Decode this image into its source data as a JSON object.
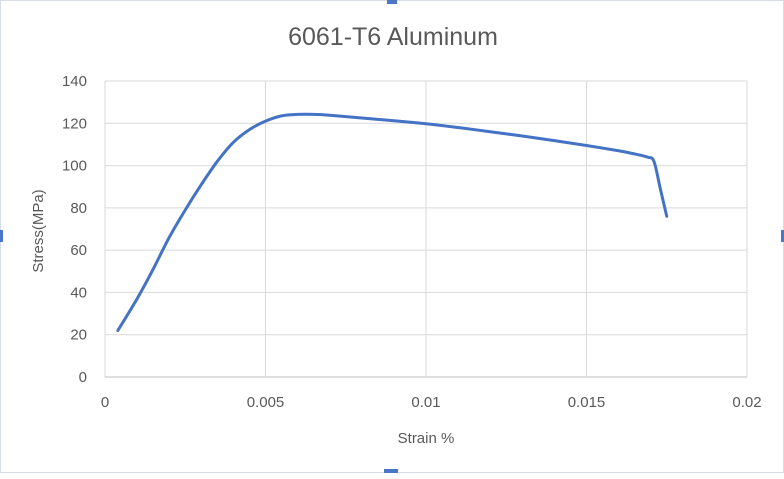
{
  "chart_data": {
    "type": "line",
    "title": "6061-T6 Aluminum",
    "xlabel": "Strain %",
    "ylabel": "Stress(MPa)",
    "xlim": [
      0,
      0.02
    ],
    "ylim": [
      0,
      140
    ],
    "x_ticks": [
      0,
      0.005,
      0.01,
      0.015,
      0.02
    ],
    "x_tick_labels": [
      "0",
      "0.005",
      "0.01",
      "0.015",
      "0.02"
    ],
    "y_ticks": [
      0,
      20,
      40,
      60,
      80,
      100,
      120,
      140
    ],
    "y_tick_labels": [
      "0",
      "20",
      "40",
      "60",
      "80",
      "100",
      "120",
      "140"
    ],
    "grid": true,
    "legend": "none",
    "series": [
      {
        "color": "#4472c4",
        "points": [
          [
            0.0004,
            22
          ],
          [
            0.001,
            37
          ],
          [
            0.0015,
            51
          ],
          [
            0.002,
            66
          ],
          [
            0.0025,
            79
          ],
          [
            0.003,
            91
          ],
          [
            0.0035,
            102
          ],
          [
            0.004,
            111
          ],
          [
            0.0045,
            117
          ],
          [
            0.005,
            121
          ],
          [
            0.0055,
            123.5
          ],
          [
            0.006,
            124.2
          ],
          [
            0.0065,
            124.2
          ],
          [
            0.007,
            123.8
          ],
          [
            0.008,
            122.5
          ],
          [
            0.009,
            121.2
          ],
          [
            0.01,
            119.8
          ],
          [
            0.011,
            118
          ],
          [
            0.012,
            116
          ],
          [
            0.013,
            114
          ],
          [
            0.014,
            111.8
          ],
          [
            0.015,
            109.5
          ],
          [
            0.016,
            107
          ],
          [
            0.0165,
            105.5
          ],
          [
            0.0169,
            104
          ],
          [
            0.0171,
            102
          ],
          [
            0.0173,
            89
          ],
          [
            0.0175,
            76
          ]
        ]
      }
    ]
  }
}
